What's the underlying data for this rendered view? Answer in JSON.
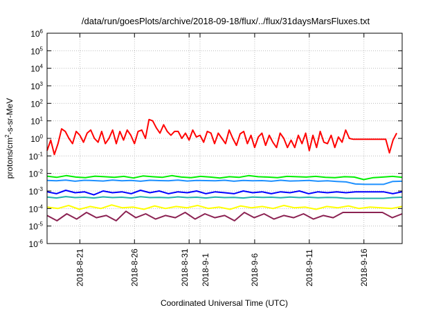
{
  "chart_data": {
    "type": "line",
    "title": "/data/run/goesPlots/archive/2018-09-18/flux/../flux/31daysMarsFluxes.txt",
    "xlabel": "Coordinated Universal Time (UTC)",
    "ylabel": {
      "prefix": "protons/cm",
      "sup": "2",
      "suffix": "-s-sr-MeV"
    },
    "yscale": "log",
    "ylim": [
      1e-06,
      1000000.0
    ],
    "xlim": [
      "2018-08-18",
      "2018-09-19"
    ],
    "grid": true,
    "legend": "none",
    "y_ticks": [
      {
        "base": "10",
        "exp": "-6",
        "value": 1e-06
      },
      {
        "base": "10",
        "exp": "-5",
        "value": 1e-05
      },
      {
        "base": "10",
        "exp": "-4",
        "value": 0.0001
      },
      {
        "base": "10",
        "exp": "-3",
        "value": 0.001
      },
      {
        "base": "10",
        "exp": "-2",
        "value": 0.01
      },
      {
        "base": "10",
        "exp": "-1",
        "value": 0.1
      },
      {
        "base": "10",
        "exp": "0",
        "value": 1
      },
      {
        "base": "10",
        "exp": "1",
        "value": 10
      },
      {
        "base": "10",
        "exp": "2",
        "value": 100
      },
      {
        "base": "10",
        "exp": "3",
        "value": 1000
      },
      {
        "base": "10",
        "exp": "4",
        "value": 10000
      },
      {
        "base": "10",
        "exp": "5",
        "value": 100000
      },
      {
        "base": "10",
        "exp": "6",
        "value": 1000000
      }
    ],
    "x_ticks": [
      {
        "label": "2018-8-21",
        "date": "2018-08-21"
      },
      {
        "label": "2018-8-26",
        "date": "2018-08-26"
      },
      {
        "label": "2018-8-31",
        "date": "2018-08-31"
      },
      {
        "label": "2018-9-1",
        "date": "2018-09-01"
      },
      {
        "label": "2018-9-6",
        "date": "2018-09-06"
      },
      {
        "label": "2018-9-11",
        "date": "2018-09-11"
      },
      {
        "label": "2018-9-16",
        "date": "2018-09-16"
      }
    ],
    "series": [
      {
        "color": "#ff0000",
        "x": [
          "2018-08-18T00:00",
          "2018-08-18T08:00",
          "2018-08-18T16:00",
          "2018-08-19T00:00",
          "2018-08-19T08:00",
          "2018-08-19T16:00",
          "2018-08-20T00:00",
          "2018-08-20T08:00",
          "2018-08-20T16:00",
          "2018-08-21T00:00",
          "2018-08-21T08:00",
          "2018-08-21T16:00",
          "2018-08-22T00:00",
          "2018-08-22T08:00",
          "2018-08-22T16:00",
          "2018-08-23T00:00",
          "2018-08-23T08:00",
          "2018-08-23T16:00",
          "2018-08-24T00:00",
          "2018-08-24T08:00",
          "2018-08-24T16:00",
          "2018-08-25T00:00",
          "2018-08-25T08:00",
          "2018-08-25T16:00",
          "2018-08-26T00:00",
          "2018-08-26T08:00",
          "2018-08-26T16:00",
          "2018-08-27T00:00",
          "2018-08-27T08:00",
          "2018-08-27T16:00",
          "2018-08-28T00:00",
          "2018-08-28T08:00",
          "2018-08-28T16:00",
          "2018-08-29T00:00",
          "2018-08-29T08:00",
          "2018-08-29T16:00",
          "2018-08-30T00:00",
          "2018-08-30T08:00",
          "2018-08-30T16:00",
          "2018-08-31T00:00",
          "2018-08-31T08:00",
          "2018-08-31T16:00",
          "2018-09-01T00:00",
          "2018-09-01T08:00",
          "2018-09-01T16:00",
          "2018-09-02T00:00",
          "2018-09-02T08:00",
          "2018-09-02T16:00",
          "2018-09-03T00:00",
          "2018-09-03T08:00",
          "2018-09-03T16:00",
          "2018-09-04T00:00",
          "2018-09-04T08:00",
          "2018-09-04T16:00",
          "2018-09-05T00:00",
          "2018-09-05T08:00",
          "2018-09-05T16:00",
          "2018-09-06T00:00",
          "2018-09-06T08:00",
          "2018-09-06T16:00",
          "2018-09-07T00:00",
          "2018-09-07T08:00",
          "2018-09-07T16:00",
          "2018-09-08T00:00",
          "2018-09-08T08:00",
          "2018-09-08T16:00",
          "2018-09-09T00:00",
          "2018-09-09T08:00",
          "2018-09-09T16:00",
          "2018-09-10T00:00",
          "2018-09-10T08:00",
          "2018-09-10T16:00",
          "2018-09-11T00:00",
          "2018-09-11T08:00",
          "2018-09-11T16:00",
          "2018-09-12T00:00",
          "2018-09-12T08:00",
          "2018-09-12T16:00",
          "2018-09-13T00:00",
          "2018-09-13T08:00",
          "2018-09-13T16:00",
          "2018-09-14T00:00",
          "2018-09-14T08:00",
          "2018-09-14T16:00",
          "2018-09-15T00:00",
          "2018-09-16T00:00",
          "2018-09-17T00:00",
          "2018-09-18T00:00",
          "2018-09-18T08:00",
          "2018-09-18T16:00",
          "2018-09-19T00:00"
        ],
        "values": [
          0.2,
          0.8,
          0.12,
          0.5,
          3.5,
          2.5,
          1.0,
          0.5,
          2.5,
          1.5,
          0.6,
          2.0,
          3.0,
          1.0,
          0.6,
          2.5,
          0.5,
          1.0,
          3.0,
          0.5,
          2.5,
          0.8,
          3.0,
          1.5,
          0.5,
          2.5,
          3.0,
          1.0,
          12,
          10,
          4.0,
          2.0,
          6.0,
          2.5,
          1.5,
          2.5,
          2.5,
          1.0,
          2.0,
          0.8,
          3.0,
          1.2,
          1.5,
          0.6,
          2.5,
          2.0,
          0.5,
          2.0,
          1.0,
          0.5,
          3.0,
          1.0,
          0.4,
          1.8,
          2.5,
          0.5,
          1.5,
          0.3,
          1.2,
          2.0,
          0.4,
          1.5,
          0.6,
          0.3,
          2.0,
          1.0,
          0.3,
          0.8,
          0.3,
          1.5,
          0.5,
          2.0,
          0.2,
          1.5,
          0.3,
          2.5,
          0.6,
          0.5,
          1.5,
          0.3,
          1.2,
          0.6,
          3.0,
          1.0,
          0.9,
          0.9,
          0.9,
          0.9,
          0.15,
          0.8,
          2.0
        ]
      },
      {
        "color": "#00ee00",
        "values_constant_region": 0.0062,
        "values": [
          0.007,
          0.006,
          0.0075,
          0.0062,
          0.0058,
          0.007,
          0.0065,
          0.006,
          0.0068,
          0.0055,
          0.0072,
          0.0065,
          0.006,
          0.0075,
          0.0062,
          0.0058,
          0.0068,
          0.0062,
          0.0055,
          0.0065,
          0.006,
          0.0075,
          0.0065,
          0.0062,
          0.0058,
          0.0068,
          0.0065,
          0.0062,
          0.0068,
          0.006,
          0.0058,
          0.0065,
          0.0062,
          0.0045,
          0.0058,
          0.0062,
          0.0068,
          0.006
        ]
      },
      {
        "color": "#1e90ff",
        "values": [
          0.004,
          0.0038,
          0.0042,
          0.0036,
          0.0041,
          0.0039,
          0.0037,
          0.0042,
          0.0038,
          0.004,
          0.0036,
          0.0041,
          0.0039,
          0.0038,
          0.0042,
          0.0037,
          0.004,
          0.0039,
          0.0038,
          0.0041,
          0.0036,
          0.004,
          0.0038,
          0.0039,
          0.0036,
          0.0041,
          0.0037,
          0.0038,
          0.004,
          0.0036,
          0.0038,
          0.0035,
          0.0033,
          0.0025,
          0.0024,
          0.0024,
          0.0024,
          0.0035,
          0.0036
        ]
      },
      {
        "color": "#0000ff",
        "values": [
          0.0009,
          0.0007,
          0.0011,
          0.0008,
          0.0009,
          0.0006,
          0.001,
          0.0008,
          0.0009,
          0.0007,
          0.0011,
          0.0008,
          0.001,
          0.0007,
          0.0009,
          0.0008,
          0.001,
          0.0007,
          0.0009,
          0.0008,
          0.0007,
          0.001,
          0.0008,
          0.0009,
          0.0007,
          0.0009,
          0.0008,
          0.001,
          0.0007,
          0.0009,
          0.0008,
          0.0009,
          0.0008,
          0.0009,
          0.0009,
          0.0009,
          0.0009,
          0.0007,
          0.0009
        ]
      },
      {
        "color": "#20b2aa",
        "values": [
          0.00045,
          0.0004,
          0.00048,
          0.00042,
          0.00044,
          0.0004,
          0.00046,
          0.00042,
          0.00044,
          0.0004,
          0.00047,
          0.00042,
          0.00043,
          0.00041,
          0.00046,
          0.00042,
          0.00044,
          0.0004,
          0.00045,
          0.00042,
          0.00043,
          0.0004,
          0.00045,
          0.00043,
          0.00044,
          0.00041,
          0.00045,
          0.00042,
          0.00044,
          0.00041,
          0.00043,
          0.00042,
          0.00038,
          0.00038,
          0.00038,
          0.00038,
          0.00038,
          0.00042,
          0.00044
        ]
      },
      {
        "color": "#ffff00",
        "values": [
          0.00012,
          0.0001,
          0.00015,
          9e-05,
          0.00013,
          0.0001,
          0.00016,
          0.00011,
          0.00012,
          9e-05,
          0.00014,
          0.0001,
          0.00013,
          0.00011,
          0.00015,
          0.0001,
          0.00012,
          9e-05,
          0.00014,
          0.00011,
          0.00013,
          0.0001,
          0.00015,
          0.00011,
          0.00012,
          9e-05,
          0.00013,
          0.00011,
          0.00014,
          0.0001,
          0.00012,
          0.00011,
          0.0001,
          0.00013
        ]
      },
      {
        "color": "#8b2252",
        "values": [
          4e-05,
          2e-05,
          5e-05,
          2.5e-05,
          6e-05,
          3e-05,
          4e-05,
          2e-05,
          7e-05,
          3e-05,
          5e-05,
          2.5e-05,
          4e-05,
          3e-05,
          6e-05,
          2.5e-05,
          5e-05,
          3e-05,
          4e-05,
          2e-05,
          6e-05,
          3e-05,
          5e-05,
          2.5e-05,
          4e-05,
          3e-05,
          5e-05,
          2.5e-05,
          4e-05,
          3e-05,
          6e-05,
          6e-05,
          6e-05,
          6e-05,
          6e-05,
          3e-05,
          5e-05
        ]
      }
    ]
  }
}
